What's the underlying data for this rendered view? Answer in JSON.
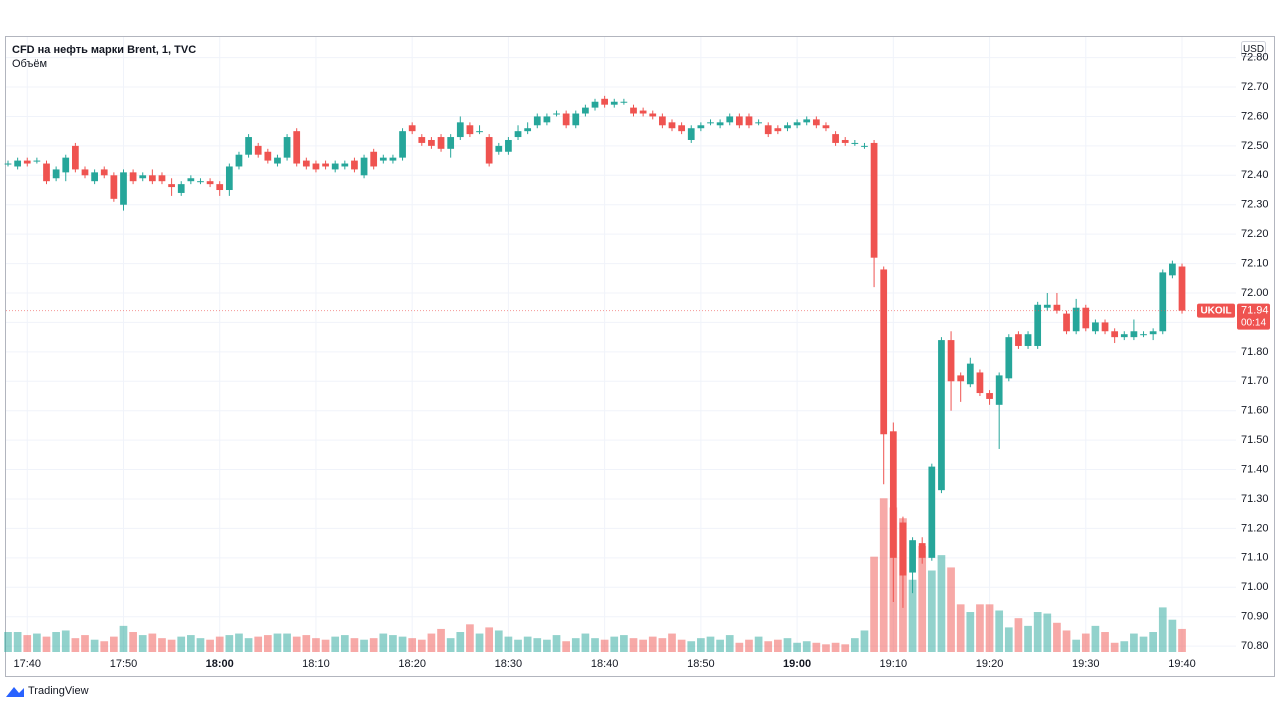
{
  "chart_data": {
    "type": "candlestick",
    "title": "CFD на нефть марки Brent, 1, TVC",
    "subtitle": "Объём",
    "currency": "USD",
    "symbol": "UKOIL",
    "last_price": 71.94,
    "countdown": "00:14",
    "brand": "TradingView",
    "up_color": "#26a69a",
    "down_color": "#ef5350",
    "grid": true,
    "x": [
      "17:38",
      "17:39",
      "17:40",
      "17:41",
      "17:42",
      "17:43",
      "17:44",
      "17:45",
      "17:46",
      "17:47",
      "17:48",
      "17:49",
      "17:50",
      "17:51",
      "17:52",
      "17:53",
      "17:54",
      "17:55",
      "17:56",
      "17:57",
      "17:58",
      "17:59",
      "18:00",
      "18:01",
      "18:02",
      "18:03",
      "18:04",
      "18:05",
      "18:06",
      "18:07",
      "18:08",
      "18:09",
      "18:10",
      "18:11",
      "18:12",
      "18:13",
      "18:14",
      "18:15",
      "18:16",
      "18:17",
      "18:18",
      "18:19",
      "18:20",
      "18:21",
      "18:22",
      "18:23",
      "18:24",
      "18:25",
      "18:26",
      "18:27",
      "18:28",
      "18:29",
      "18:30",
      "18:31",
      "18:32",
      "18:33",
      "18:34",
      "18:35",
      "18:36",
      "18:37",
      "18:38",
      "18:39",
      "18:40",
      "18:41",
      "18:42",
      "18:43",
      "18:44",
      "18:45",
      "18:46",
      "18:47",
      "18:48",
      "18:49",
      "18:50",
      "18:51",
      "18:52",
      "18:53",
      "18:54",
      "18:55",
      "18:56",
      "18:57",
      "18:58",
      "18:59",
      "19:00",
      "19:01",
      "19:02",
      "19:03",
      "19:04",
      "19:05",
      "19:06",
      "19:07",
      "19:08",
      "19:09",
      "19:10",
      "19:11",
      "19:12",
      "19:13",
      "19:14",
      "19:15",
      "19:16",
      "19:17",
      "19:18",
      "19:19",
      "19:20",
      "19:21",
      "19:22",
      "19:23",
      "19:24",
      "19:25",
      "19:26",
      "19:27",
      "19:28",
      "19:29",
      "19:30",
      "19:31",
      "19:32",
      "19:33",
      "19:34",
      "19:35",
      "19:36",
      "19:37",
      "19:38",
      "19:39",
      "19:40"
    ],
    "candles": [
      [
        72.44,
        72.45,
        72.43,
        72.44
      ],
      [
        72.43,
        72.46,
        72.42,
        72.45
      ],
      [
        72.45,
        72.46,
        72.43,
        72.44
      ],
      [
        72.45,
        72.46,
        72.44,
        72.45
      ],
      [
        72.44,
        72.45,
        72.37,
        72.38
      ],
      [
        72.39,
        72.43,
        72.38,
        72.42
      ],
      [
        72.41,
        72.47,
        72.38,
        72.46
      ],
      [
        72.5,
        72.51,
        72.41,
        72.42
      ],
      [
        72.42,
        72.43,
        72.39,
        72.4
      ],
      [
        72.38,
        72.42,
        72.37,
        72.41
      ],
      [
        72.42,
        72.43,
        72.39,
        72.4
      ],
      [
        72.4,
        72.41,
        72.31,
        72.32
      ],
      [
        72.3,
        72.42,
        72.28,
        72.41
      ],
      [
        72.41,
        72.42,
        72.37,
        72.38
      ],
      [
        72.39,
        72.41,
        72.38,
        72.4
      ],
      [
        72.4,
        72.42,
        72.37,
        72.38
      ],
      [
        72.4,
        72.41,
        72.37,
        72.38
      ],
      [
        72.37,
        72.39,
        72.33,
        72.36
      ],
      [
        72.34,
        72.38,
        72.33,
        72.37
      ],
      [
        72.38,
        72.4,
        72.37,
        72.39
      ],
      [
        72.38,
        72.39,
        72.37,
        72.38
      ],
      [
        72.38,
        72.39,
        72.36,
        72.37
      ],
      [
        72.37,
        72.38,
        72.33,
        72.35
      ],
      [
        72.35,
        72.44,
        72.33,
        72.43
      ],
      [
        72.43,
        72.48,
        72.42,
        72.47
      ],
      [
        72.47,
        72.54,
        72.46,
        72.53
      ],
      [
        72.5,
        72.51,
        72.46,
        72.47
      ],
      [
        72.48,
        72.49,
        72.44,
        72.45
      ],
      [
        72.44,
        72.47,
        72.43,
        72.46
      ],
      [
        72.46,
        72.54,
        72.45,
        72.53
      ],
      [
        72.55,
        72.56,
        72.43,
        72.44
      ],
      [
        72.45,
        72.46,
        72.42,
        72.43
      ],
      [
        72.44,
        72.45,
        72.41,
        72.42
      ],
      [
        72.44,
        72.45,
        72.42,
        72.43
      ],
      [
        72.42,
        72.45,
        72.41,
        72.44
      ],
      [
        72.43,
        72.45,
        72.42,
        72.44
      ],
      [
        72.45,
        72.46,
        72.41,
        72.42
      ],
      [
        72.4,
        72.47,
        72.39,
        72.46
      ],
      [
        72.48,
        72.49,
        72.42,
        72.43
      ],
      [
        72.45,
        72.47,
        72.44,
        72.46
      ],
      [
        72.45,
        72.47,
        72.44,
        72.46
      ],
      [
        72.46,
        72.56,
        72.45,
        72.55
      ],
      [
        72.57,
        72.58,
        72.54,
        72.55
      ],
      [
        72.53,
        72.54,
        72.5,
        72.51
      ],
      [
        72.52,
        72.53,
        72.49,
        72.5
      ],
      [
        72.53,
        72.54,
        72.48,
        72.49
      ],
      [
        72.49,
        72.54,
        72.46,
        72.53
      ],
      [
        72.53,
        72.6,
        72.52,
        72.58
      ],
      [
        72.57,
        72.58,
        72.53,
        72.54
      ],
      [
        72.55,
        72.57,
        72.54,
        72.55
      ],
      [
        72.53,
        72.54,
        72.43,
        72.44
      ],
      [
        72.48,
        72.51,
        72.47,
        72.5
      ],
      [
        72.48,
        72.53,
        72.47,
        72.52
      ],
      [
        72.53,
        72.57,
        72.52,
        72.55
      ],
      [
        72.55,
        72.58,
        72.54,
        72.56
      ],
      [
        72.57,
        72.61,
        72.56,
        72.6
      ],
      [
        72.58,
        72.61,
        72.57,
        72.6
      ],
      [
        72.61,
        72.62,
        72.6,
        72.61
      ],
      [
        72.61,
        72.62,
        72.56,
        72.57
      ],
      [
        72.57,
        72.62,
        72.56,
        72.61
      ],
      [
        72.61,
        72.64,
        72.6,
        72.63
      ],
      [
        72.63,
        72.66,
        72.62,
        72.65
      ],
      [
        72.66,
        72.67,
        72.63,
        72.64
      ],
      [
        72.64,
        72.66,
        72.63,
        72.65
      ],
      [
        72.65,
        72.66,
        72.64,
        72.65
      ],
      [
        72.63,
        72.64,
        72.6,
        72.61
      ],
      [
        72.62,
        72.63,
        72.6,
        72.61
      ],
      [
        72.61,
        72.62,
        72.59,
        72.6
      ],
      [
        72.6,
        72.61,
        72.56,
        72.57
      ],
      [
        72.58,
        72.59,
        72.55,
        72.56
      ],
      [
        72.57,
        72.58,
        72.54,
        72.55
      ],
      [
        72.52,
        72.57,
        72.51,
        72.56
      ],
      [
        72.56,
        72.58,
        72.55,
        72.57
      ],
      [
        72.58,
        72.59,
        72.57,
        72.58
      ],
      [
        72.57,
        72.59,
        72.56,
        72.58
      ],
      [
        72.58,
        72.61,
        72.57,
        72.6
      ],
      [
        72.6,
        72.61,
        72.56,
        72.57
      ],
      [
        72.6,
        72.61,
        72.56,
        72.57
      ],
      [
        72.58,
        72.59,
        72.57,
        72.58
      ],
      [
        72.57,
        72.58,
        72.53,
        72.54
      ],
      [
        72.56,
        72.57,
        72.54,
        72.55
      ],
      [
        72.56,
        72.58,
        72.55,
        72.57
      ],
      [
        72.57,
        72.59,
        72.56,
        72.58
      ],
      [
        72.58,
        72.6,
        72.57,
        72.59
      ],
      [
        72.59,
        72.6,
        72.56,
        72.57
      ],
      [
        72.57,
        72.58,
        72.55,
        72.56
      ],
      [
        72.54,
        72.55,
        72.5,
        72.51
      ],
      [
        72.52,
        72.53,
        72.5,
        72.51
      ],
      [
        72.51,
        72.52,
        72.5,
        72.51
      ],
      [
        72.5,
        72.51,
        72.49,
        72.5
      ],
      [
        72.51,
        72.52,
        72.02,
        72.12
      ],
      [
        72.08,
        72.09,
        71.35,
        71.52
      ],
      [
        71.53,
        71.56,
        70.95,
        71.1
      ],
      [
        71.22,
        71.24,
        70.93,
        71.04
      ],
      [
        71.05,
        71.17,
        70.98,
        71.16
      ],
      [
        71.15,
        71.17,
        71.08,
        71.1
      ],
      [
        71.1,
        71.42,
        71.09,
        71.41
      ],
      [
        71.33,
        71.85,
        71.32,
        71.84
      ],
      [
        71.84,
        71.87,
        71.6,
        71.7
      ],
      [
        71.72,
        71.73,
        71.63,
        71.7
      ],
      [
        71.69,
        71.78,
        71.68,
        71.76
      ],
      [
        71.73,
        71.74,
        71.65,
        71.66
      ],
      [
        71.66,
        71.67,
        71.62,
        71.64
      ],
      [
        71.62,
        71.73,
        71.47,
        71.72
      ],
      [
        71.71,
        71.86,
        71.7,
        71.85
      ],
      [
        71.86,
        71.87,
        71.81,
        71.82
      ],
      [
        71.82,
        71.87,
        71.81,
        71.86
      ],
      [
        71.82,
        71.97,
        71.81,
        71.96
      ],
      [
        71.95,
        72.0,
        71.94,
        71.96
      ],
      [
        71.96,
        72.0,
        71.93,
        71.94
      ],
      [
        71.93,
        71.94,
        71.86,
        71.87
      ],
      [
        71.87,
        71.98,
        71.86,
        71.95
      ],
      [
        71.95,
        71.96,
        71.87,
        71.88
      ],
      [
        71.87,
        71.91,
        71.86,
        71.9
      ],
      [
        71.9,
        71.91,
        71.86,
        71.87
      ],
      [
        71.87,
        71.88,
        71.83,
        71.85
      ],
      [
        71.85,
        71.87,
        71.84,
        71.86
      ],
      [
        71.85,
        71.91,
        71.84,
        71.87
      ],
      [
        71.86,
        71.87,
        71.85,
        71.86
      ],
      [
        71.86,
        71.88,
        71.84,
        71.87
      ],
      [
        71.87,
        72.08,
        71.86,
        72.07
      ],
      [
        72.06,
        72.11,
        72.05,
        72.1
      ],
      [
        72.09,
        72.1,
        71.93,
        71.94
      ]
    ],
    "volume": [
      13,
      13,
      11,
      12,
      10,
      13,
      14,
      9,
      11,
      8,
      7,
      10,
      17,
      13,
      11,
      12,
      9,
      8,
      10,
      11,
      9,
      8,
      10,
      11,
      12,
      9,
      10,
      11,
      12,
      12,
      10,
      11,
      9,
      8,
      10,
      11,
      9,
      8,
      9,
      12,
      11,
      10,
      9,
      8,
      12,
      15,
      9,
      13,
      18,
      12,
      16,
      14,
      10,
      8,
      10,
      9,
      8,
      11,
      7,
      9,
      12,
      9,
      8,
      10,
      11,
      9,
      8,
      10,
      9,
      12,
      8,
      7,
      9,
      10,
      8,
      11,
      6,
      8,
      10,
      7,
      8,
      9,
      6,
      7,
      6,
      5,
      6,
      5,
      9,
      14,
      62,
      100,
      94,
      87,
      47,
      69,
      53,
      63,
      55,
      31,
      26,
      31,
      31,
      27,
      16,
      22,
      17,
      26,
      25,
      19,
      14,
      8,
      12,
      17,
      13,
      6,
      7,
      12,
      10,
      13,
      29,
      21,
      15
    ],
    "vlim": [
      0,
      400
    ],
    "ylim": [
      70.78,
      72.87
    ],
    "yticks": [
      {
        "value": 72.8,
        "label": "72.80"
      },
      {
        "value": 72.7,
        "label": "72.70"
      },
      {
        "value": 72.6,
        "label": "72.60"
      },
      {
        "value": 72.5,
        "label": "72.50"
      },
      {
        "value": 72.4,
        "label": "72.40"
      },
      {
        "value": 72.3,
        "label": "72.30"
      },
      {
        "value": 72.2,
        "label": "72.20"
      },
      {
        "value": 72.1,
        "label": "72.10"
      },
      {
        "value": 72.0,
        "label": "72.00"
      },
      {
        "value": 71.9,
        "label": "71.90"
      },
      {
        "value": 71.8,
        "label": "71.80"
      },
      {
        "value": 71.7,
        "label": "71.70"
      },
      {
        "value": 71.6,
        "label": "71.60"
      },
      {
        "value": 71.5,
        "label": "71.50"
      },
      {
        "value": 71.4,
        "label": "71.40"
      },
      {
        "value": 71.3,
        "label": "71.30"
      },
      {
        "value": 71.2,
        "label": "71.20"
      },
      {
        "value": 71.1,
        "label": "71.10"
      },
      {
        "value": 71.0,
        "label": "71.00"
      },
      {
        "value": 70.9,
        "label": "70.90"
      },
      {
        "value": 70.8,
        "label": "70.80"
      }
    ],
    "xticks": [
      "17:40",
      "17:50",
      "18:00",
      "18:10",
      "18:20",
      "18:30",
      "18:40",
      "18:50",
      "19:00",
      "19:10",
      "19:20",
      "19:30",
      "19:40"
    ]
  }
}
